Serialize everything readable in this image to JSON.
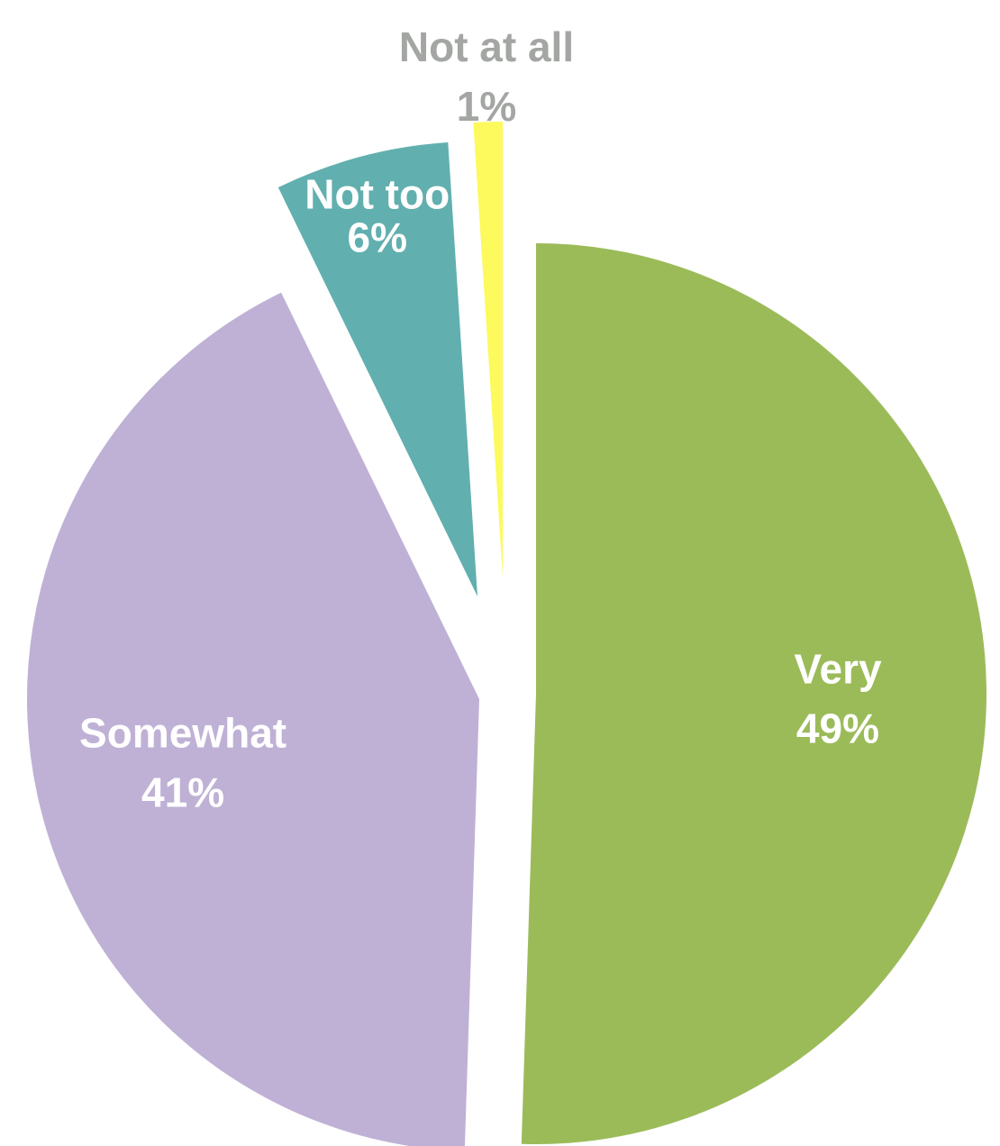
{
  "chart_data": {
    "type": "pie",
    "title": "",
    "slices": [
      {
        "label": "Very",
        "value": 49,
        "value_label": "49%",
        "color": "#9bbb59"
      },
      {
        "label": "Somewhat",
        "value": 41,
        "value_label": "41%",
        "color": "#bfb1d5"
      },
      {
        "label": "Not too",
        "value": 6,
        "value_label": "6%",
        "color": "#62afaf"
      },
      {
        "label": "Not at all",
        "value": 1,
        "value_label": "1%",
        "color": "#fcfa5c"
      }
    ],
    "legend": "none",
    "labels": "on-slice",
    "exploded": true
  }
}
